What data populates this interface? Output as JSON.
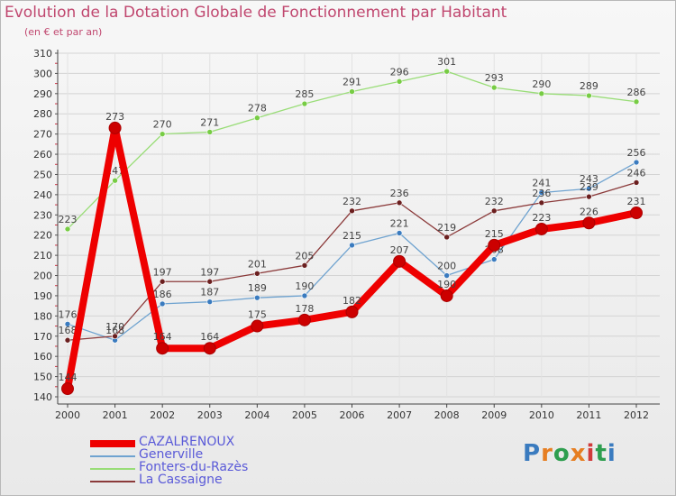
{
  "chart_data": {
    "type": "line",
    "title": "Evolution de la Dotation Globale de Fonctionnement par Habitant",
    "subtitle": "(en € et par an)",
    "xlabel": "",
    "ylabel": "",
    "ylim": [
      140,
      310
    ],
    "ytick_step": 10,
    "categories": [
      "2000",
      "2001",
      "2002",
      "2003",
      "2004",
      "2005",
      "2006",
      "2007",
      "2008",
      "2009",
      "2010",
      "2011",
      "2012"
    ],
    "series": [
      {
        "name": "CAZALRENOUX",
        "color": "#ee0000",
        "marker_color": "#cc0000",
        "values": [
          144,
          273,
          164,
          164,
          175,
          178,
          182,
          207,
          190,
          215,
          223,
          226,
          231
        ]
      },
      {
        "name": "Generville",
        "color": "#6fa3d0",
        "marker_color": "#3a7bbf",
        "values": [
          176,
          168,
          186,
          187,
          189,
          190,
          215,
          221,
          200,
          208,
          241,
          243,
          256
        ]
      },
      {
        "name": "Fonters-du-Razès",
        "color": "#99dd77",
        "marker_color": "#77cc44",
        "values": [
          223,
          247,
          270,
          271,
          278,
          285,
          291,
          296,
          301,
          293,
          290,
          289,
          286
        ]
      },
      {
        "name": "La Cassaigne",
        "color": "#8b3a3a",
        "marker_color": "#6b1f1f",
        "values": [
          168,
          170,
          197,
          197,
          201,
          205,
          232,
          236,
          219,
          232,
          236,
          239,
          246
        ]
      }
    ],
    "legend_position": "bottom-left",
    "grid": true
  },
  "logo": {
    "text": "Proxiti",
    "colors": [
      "#3a7bbf",
      "#e67e22",
      "#2e9e4f",
      "#e67e22",
      "#d03a3a",
      "#2e9e4f",
      "#3a7bbf"
    ]
  }
}
